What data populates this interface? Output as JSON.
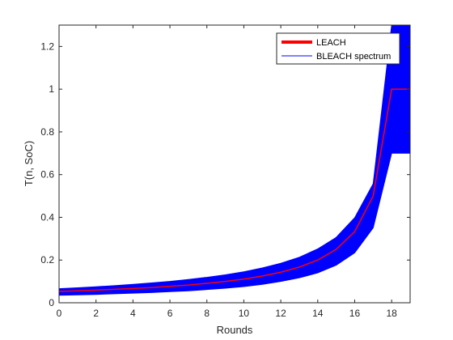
{
  "chart_data": {
    "type": "area",
    "title": "",
    "xlabel": "Rounds",
    "ylabel": "T(n, SoC)",
    "xlim": [
      0,
      19
    ],
    "ylim": [
      0,
      1.3
    ],
    "x_ticks": [
      "0",
      "2",
      "4",
      "6",
      "8",
      "10",
      "12",
      "14",
      "16",
      "18"
    ],
    "y_ticks": [
      "0",
      "0.2",
      "0.4",
      "0.6",
      "0.8",
      "1",
      "1.2"
    ],
    "grid": false,
    "legend_position": "top-right",
    "x": [
      0,
      1,
      2,
      3,
      4,
      5,
      6,
      7,
      8,
      9,
      10,
      11,
      12,
      13,
      14,
      15,
      16,
      17,
      18,
      19
    ],
    "series": [
      {
        "name": "LEACH",
        "color": "#ff0000",
        "values": [
          0.053,
          0.056,
          0.059,
          0.063,
          0.067,
          0.071,
          0.077,
          0.083,
          0.091,
          0.1,
          0.111,
          0.125,
          0.143,
          0.167,
          0.2,
          0.25,
          0.333,
          0.5,
          1.0,
          1.0
        ]
      },
      {
        "name": "BLEACH spectrum",
        "color": "#0000ff",
        "lower": [
          0.035,
          0.037,
          0.039,
          0.042,
          0.045,
          0.048,
          0.052,
          0.056,
          0.062,
          0.068,
          0.076,
          0.086,
          0.1,
          0.117,
          0.14,
          0.176,
          0.234,
          0.351,
          0.7,
          0.7
        ],
        "upper": [
          0.066,
          0.07,
          0.075,
          0.08,
          0.086,
          0.093,
          0.1,
          0.109,
          0.119,
          0.131,
          0.145,
          0.163,
          0.185,
          0.213,
          0.252,
          0.306,
          0.398,
          0.557,
          1.3,
          1.3
        ]
      }
    ]
  }
}
